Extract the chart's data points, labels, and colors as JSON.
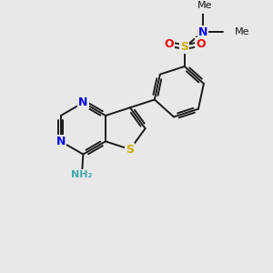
{
  "background_color": "#e8e8e8",
  "bond_color": "#1a1a1a",
  "N_color": "#0000ee",
  "S_color": "#ccaa00",
  "O_color": "#ee0000",
  "NH2_color": "#44aaaa",
  "figsize": [
    3.0,
    3.0
  ],
  "dpi": 100,
  "xlim": [
    0,
    10
  ],
  "ylim": [
    0,
    10
  ]
}
